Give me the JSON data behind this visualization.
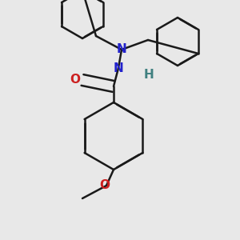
{
  "bg_color": "#e8e8e8",
  "bond_color": "#1a1a1a",
  "N_color": "#2222cc",
  "O_color": "#cc2020",
  "H_color": "#408080",
  "lw": 1.8,
  "dbo": 0.016,
  "xlim": [
    0,
    300
  ],
  "ylim": [
    0,
    300
  ]
}
